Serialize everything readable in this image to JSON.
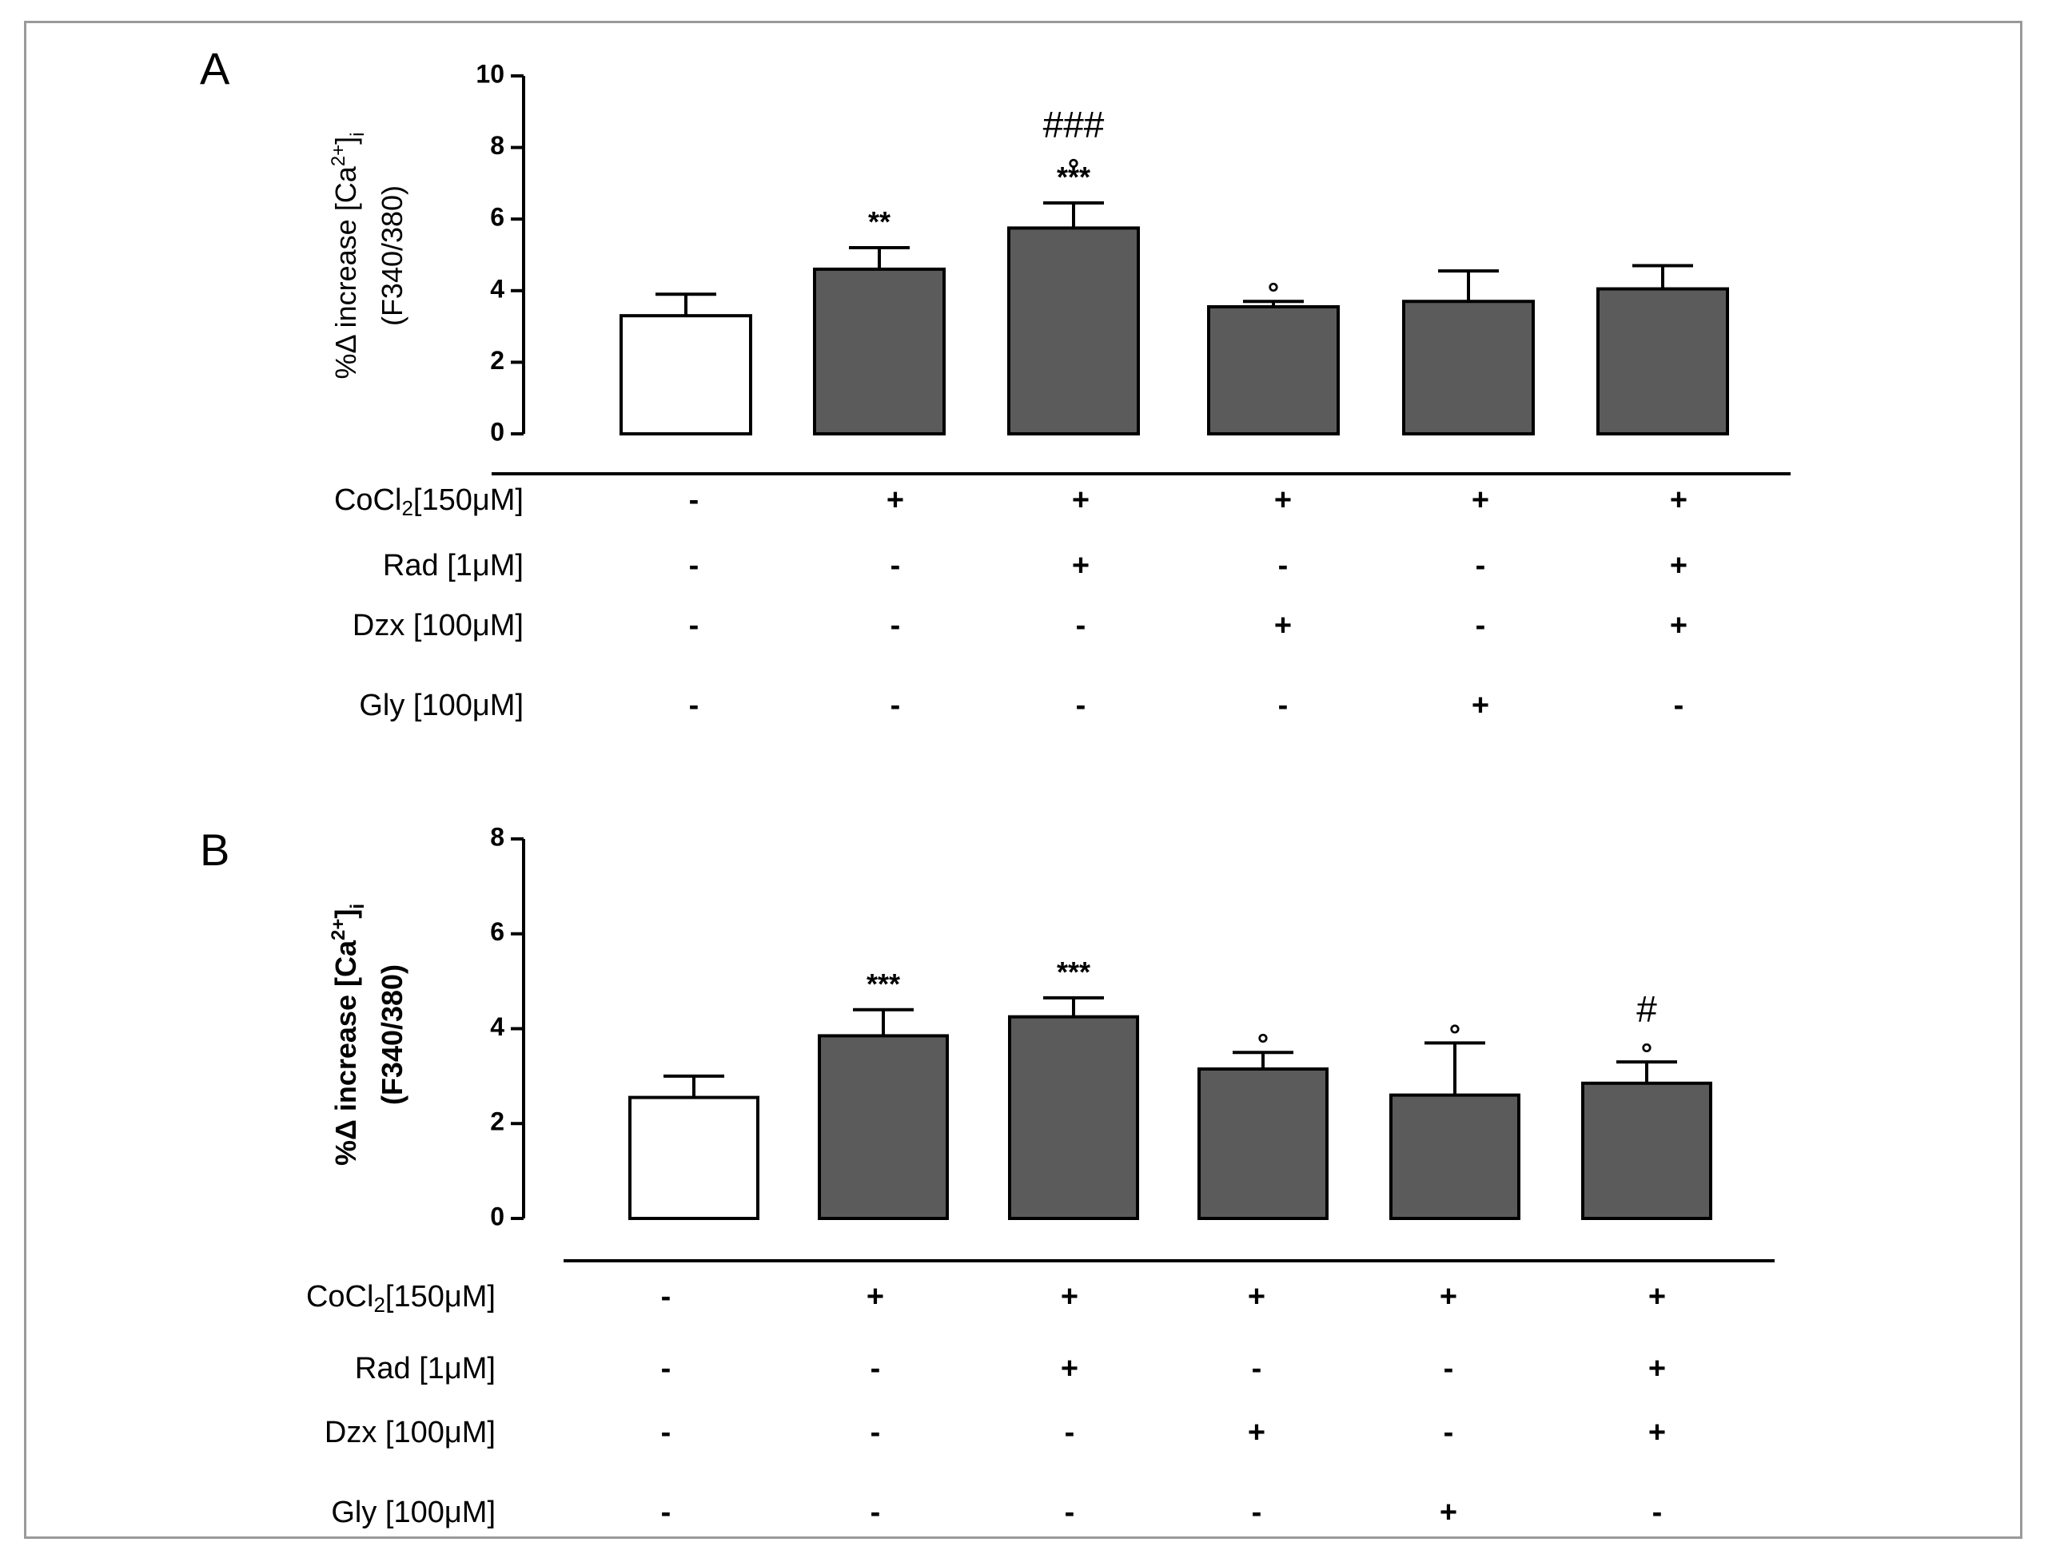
{
  "chart_data": [
    {
      "panel": "A",
      "type": "bar",
      "ylabel_main": "%Δ increase [Ca",
      "ylabel_sup": "2+",
      "ylabel_close": "]",
      "ylabel_sub": "i",
      "ylabel_line2": "(F340/380)",
      "ylim": [
        0,
        10
      ],
      "yticks": [
        0,
        2,
        4,
        6,
        8,
        10
      ],
      "values": [
        3.3,
        4.6,
        5.75,
        3.55,
        3.7,
        4.05
      ],
      "errors": [
        0.6,
        0.6,
        0.7,
        0.15,
        0.85,
        0.65
      ],
      "fills": [
        "#ffffff",
        "#5b5b5b",
        "#5b5b5b",
        "#5b5b5b",
        "#5b5b5b",
        "#5b5b5b"
      ],
      "annotations": [
        [],
        [
          "**"
        ],
        [
          "***",
          "°",
          "###"
        ],
        [
          "°"
        ],
        [],
        []
      ],
      "conditions": [
        {
          "label": "CoCl",
          "sub": "2",
          "rest": "[150μM]",
          "signs": [
            "-",
            "+",
            "+",
            "+",
            "+",
            "+"
          ]
        },
        {
          "label": "Rad  [1μM]",
          "sub": "",
          "rest": "",
          "signs": [
            "-",
            "-",
            "+",
            "-",
            "-",
            "+"
          ]
        },
        {
          "label": "Dzx [100μM]",
          "sub": "",
          "rest": "",
          "signs": [
            "-",
            "-",
            "-",
            "+",
            "-",
            "+"
          ]
        },
        {
          "label": "Gly  [100μM]",
          "sub": "",
          "rest": "",
          "signs": [
            "-",
            "-",
            "-",
            "-",
            "+",
            "-"
          ]
        }
      ]
    },
    {
      "panel": "B",
      "type": "bar",
      "ylabel_main": "%Δ increase [Ca",
      "ylabel_sup": "2+",
      "ylabel_close": "]",
      "ylabel_sub": "i",
      "ylabel_line2": "(F340/380)",
      "ylim": [
        0,
        8
      ],
      "yticks": [
        0,
        2,
        4,
        6,
        8
      ],
      "values": [
        2.55,
        3.85,
        4.25,
        3.15,
        2.6,
        2.85
      ],
      "errors": [
        0.45,
        0.55,
        0.4,
        0.35,
        1.1,
        0.45
      ],
      "fills": [
        "#ffffff",
        "#5b5b5b",
        "#5b5b5b",
        "#5b5b5b",
        "#5b5b5b",
        "#5b5b5b"
      ],
      "annotations": [
        [],
        [
          "***"
        ],
        [
          "***"
        ],
        [
          "°"
        ],
        [
          "°"
        ],
        [
          "°",
          "#"
        ]
      ],
      "conditions": [
        {
          "label": "CoCl",
          "sub": "2",
          "rest": "[150μM]",
          "signs": [
            "-",
            "+",
            "+",
            "+",
            "+",
            "+"
          ]
        },
        {
          "label": "Rad  [1μM]",
          "sub": "",
          "rest": "",
          "signs": [
            "-",
            "-",
            "+",
            "-",
            "-",
            "+"
          ]
        },
        {
          "label": "Dzx [100μM]",
          "sub": "",
          "rest": "",
          "signs": [
            "-",
            "-",
            "-",
            "+",
            "-",
            "+"
          ]
        },
        {
          "label": "Gly  [100μM]",
          "sub": "",
          "rest": "",
          "signs": [
            "-",
            "-",
            "-",
            "-",
            "+",
            "-"
          ]
        }
      ]
    }
  ]
}
